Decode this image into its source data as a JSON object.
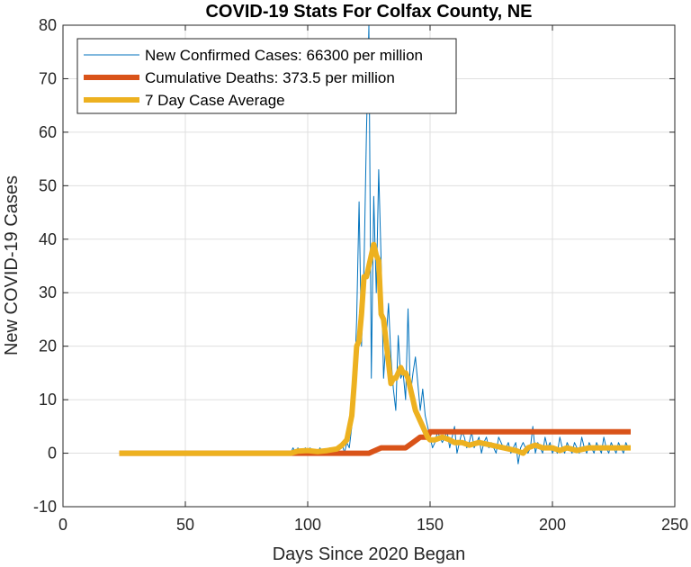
{
  "chart_data": {
    "type": "line",
    "title": "COVID-19 Stats For Colfax County, NE",
    "xlabel": "Days Since 2020 Began",
    "ylabel": "New COVID-19 Cases",
    "xlim": [
      0,
      250
    ],
    "ylim": [
      -10,
      80
    ],
    "xticks": [
      0,
      50,
      100,
      150,
      200,
      250
    ],
    "yticks": [
      -10,
      0,
      10,
      20,
      30,
      40,
      50,
      60,
      70,
      80
    ],
    "grid": true,
    "legend_position": "top-left",
    "series": [
      {
        "name": "New Confirmed Cases: 66300 per million",
        "color": "#0072BD",
        "x": [
          23,
          93,
          94,
          95,
          96,
          97,
          98,
          99,
          100,
          101,
          102,
          103,
          104,
          105,
          106,
          107,
          108,
          109,
          110,
          111,
          112,
          113,
          114,
          115,
          116,
          117,
          118,
          119,
          120,
          121,
          122,
          123,
          124,
          125,
          126,
          127,
          128,
          129,
          130,
          131,
          132,
          133,
          134,
          135,
          136,
          137,
          138,
          139,
          140,
          141,
          142,
          143,
          144,
          145,
          146,
          147,
          148,
          149,
          150,
          151,
          152,
          153,
          154,
          155,
          156,
          157,
          158,
          159,
          160,
          161,
          162,
          163,
          164,
          165,
          166,
          167,
          168,
          169,
          170,
          171,
          172,
          173,
          174,
          175,
          176,
          177,
          178,
          179,
          180,
          181,
          182,
          183,
          184,
          185,
          186,
          187,
          188,
          189,
          190,
          191,
          192,
          193,
          194,
          195,
          196,
          197,
          198,
          199,
          200,
          201,
          202,
          203,
          204,
          205,
          206,
          207,
          208,
          209,
          210,
          211,
          212,
          213,
          214,
          215,
          216,
          217,
          218,
          219,
          220,
          221,
          222,
          223,
          224,
          225,
          226,
          227,
          228,
          229,
          230,
          231,
          232
        ],
        "y": [
          0,
          0,
          1,
          0,
          1,
          0,
          0,
          1,
          0,
          1,
          0,
          0,
          0,
          1,
          0,
          0,
          0,
          1,
          0,
          0,
          0,
          1,
          2,
          0,
          2,
          1,
          5,
          12,
          25,
          47,
          20,
          35,
          60,
          80,
          14,
          48,
          30,
          53,
          36,
          14,
          21,
          28,
          18,
          12,
          8,
          22,
          14,
          15,
          10,
          27,
          11,
          15,
          18,
          13,
          8,
          12,
          7,
          5,
          3,
          1,
          2,
          4,
          3,
          2,
          3,
          4,
          1,
          3,
          5,
          0,
          2,
          4,
          3,
          1,
          2,
          4,
          1,
          2,
          3,
          0,
          2,
          3,
          1,
          2,
          1,
          0,
          3,
          2,
          1,
          1,
          2,
          0,
          1,
          2,
          -2,
          1,
          2,
          1,
          0,
          1,
          5,
          0,
          2,
          1,
          0,
          3,
          1,
          2,
          0,
          1,
          0,
          3,
          1,
          0,
          2,
          1,
          0,
          2,
          1,
          0,
          3,
          1,
          0,
          2,
          1,
          0,
          2,
          1,
          0,
          3,
          1,
          0,
          2,
          1,
          0,
          2,
          1,
          0,
          2,
          1,
          1
        ]
      },
      {
        "name": "Cumulative Deaths: 373.5 per million",
        "color": "#D95319",
        "x": [
          23,
          93,
          95,
          100,
          105,
          110,
          115,
          120,
          125,
          130,
          131,
          132,
          138,
          140,
          143,
          146,
          147,
          149,
          150,
          151,
          152,
          232
        ],
        "y": [
          0,
          0,
          0,
          0,
          0,
          0,
          0,
          0,
          0,
          1,
          1,
          1,
          1,
          1,
          2,
          3,
          3,
          3,
          4,
          4,
          4,
          4
        ]
      },
      {
        "name": "7 Day Case Average",
        "color": "#EDB120",
        "x": [
          23,
          93,
          96,
          100,
          104,
          108,
          112,
          114,
          116,
          118,
          119,
          120,
          121,
          122,
          123,
          124,
          125,
          126,
          127,
          128,
          129,
          130,
          131,
          132,
          133,
          134,
          135,
          136,
          137,
          138,
          139,
          140,
          141,
          142,
          143,
          144,
          145,
          146,
          147,
          148,
          149,
          150,
          152,
          155,
          158,
          160,
          163,
          166,
          170,
          175,
          180,
          185,
          188,
          190,
          193,
          196,
          200,
          203,
          206,
          210,
          215,
          220,
          225,
          230,
          232
        ],
        "y": [
          0,
          0,
          0.4,
          0.5,
          0.3,
          0.5,
          0.8,
          1.5,
          2.5,
          7,
          13,
          20,
          21,
          26,
          33,
          33,
          35,
          37,
          39,
          37,
          36,
          26,
          25,
          21,
          17,
          13,
          14,
          14,
          15,
          16,
          15,
          15,
          14,
          12,
          10,
          8,
          7,
          6,
          5,
          4,
          3,
          2.5,
          2.5,
          3,
          2.5,
          2,
          2,
          1.5,
          2,
          1.5,
          1,
          0.5,
          0,
          1,
          1.5,
          1,
          1,
          0.5,
          1,
          0.5,
          1,
          1,
          1,
          1,
          1
        ]
      }
    ]
  }
}
